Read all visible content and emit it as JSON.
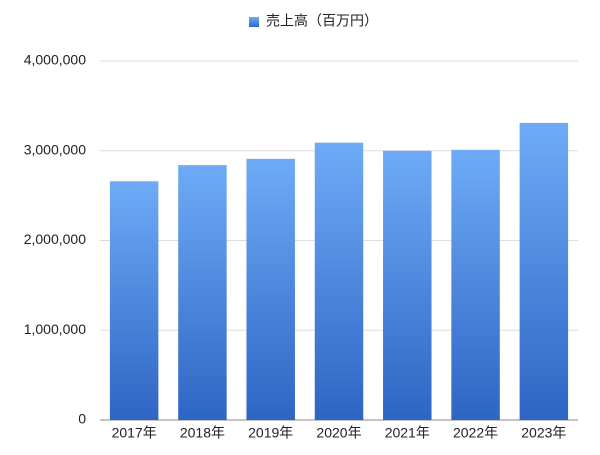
{
  "chart_data": {
    "type": "bar",
    "categories": [
      "2017年",
      "2018年",
      "2019年",
      "2020年",
      "2021年",
      "2022年",
      "2023年"
    ],
    "series": [
      {
        "name": "売上高（百万円）",
        "color": [
          "#6eabf6",
          "#2e65c4"
        ],
        "values": [
          2660000,
          2840000,
          2910000,
          3090000,
          3000000,
          3010000,
          3310000
        ]
      }
    ],
    "ylim": [
      0,
      4000000
    ],
    "yticks": [
      0,
      {
        "value": 1000000,
        "label": "1,000,000"
      },
      {
        "value": 2000000,
        "label": "2,000,000"
      },
      {
        "value": 3000000,
        "label": "3,000,000"
      },
      {
        "value": 4000000,
        "label": "4,000,000"
      }
    ],
    "grid": true,
    "legend": "top"
  }
}
